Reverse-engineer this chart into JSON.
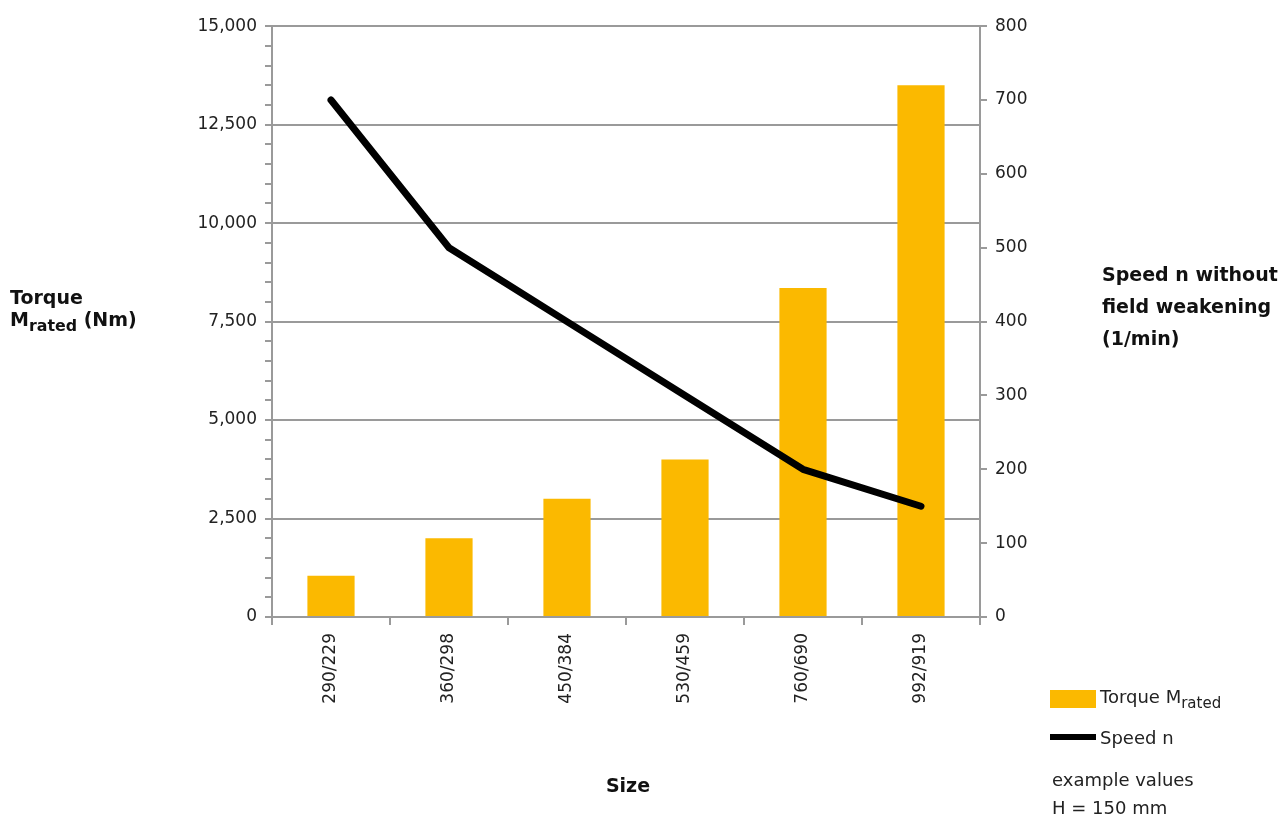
{
  "chart_data": {
    "type": "bar",
    "categories": [
      "290/229",
      "360/298",
      "450/384",
      "530/459",
      "760/690",
      "992/919"
    ],
    "series": [
      {
        "name": "Torque M$_{rated}$",
        "color": "#fbb900",
        "values": [
          1050,
          2000,
          3000,
          4000,
          8350,
          13500
        ]
      },
      {
        "name": "Speed n",
        "type": "line",
        "axis": "y2",
        "color": "#000000",
        "values": [
          700,
          500,
          400,
          300,
          200,
          150
        ]
      }
    ],
    "xlabel": "Size",
    "ylabel": "Torque M$_{rated}$ (Nm)",
    "y2label": "Speed n without field weakening (1/min)",
    "ylim": [
      0,
      15000
    ],
    "yticks": [
      {
        "value": 0,
        "label": "0"
      },
      {
        "value": 500,
        "label": null
      },
      {
        "value": 1000,
        "label": null
      },
      {
        "value": 1500,
        "label": null
      },
      {
        "value": 2000,
        "label": null
      },
      {
        "value": 2500,
        "label": "2,500"
      },
      {
        "value": 3000,
        "label": null
      },
      {
        "value": 3500,
        "label": null
      },
      {
        "value": 4000,
        "label": null
      },
      {
        "value": 4500,
        "label": null
      },
      {
        "value": 5000,
        "label": "5,000"
      },
      {
        "value": 5500,
        "label": null
      },
      {
        "value": 6000,
        "label": null
      },
      {
        "value": 6500,
        "label": null
      },
      {
        "value": 7000,
        "label": null
      },
      {
        "value": 7500,
        "label": "7,500"
      },
      {
        "value": 8000,
        "label": null
      },
      {
        "value": 8500,
        "label": null
      },
      {
        "value": 9000,
        "label": null
      },
      {
        "value": 9500,
        "label": null
      },
      {
        "value": 10000,
        "label": "10,000"
      },
      {
        "value": 10500,
        "label": null
      },
      {
        "value": 11000,
        "label": null
      },
      {
        "value": 11500,
        "label": null
      },
      {
        "value": 12000,
        "label": null
      },
      {
        "value": 12500,
        "label": "12,500"
      },
      {
        "value": 13000,
        "label": null
      },
      {
        "value": 13500,
        "label": null
      },
      {
        "value": 14000,
        "label": null
      },
      {
        "value": 14500,
        "label": null
      },
      {
        "value": 15000,
        "label": "15,000"
      }
    ],
    "y2lim": [
      0,
      800
    ],
    "y2ticks": [
      0,
      100,
      200,
      300,
      400,
      500,
      600,
      700,
      800
    ],
    "grid": "y",
    "legend": "bottom right",
    "annotations": [
      "example values",
      "H = 150 mm"
    ]
  }
}
